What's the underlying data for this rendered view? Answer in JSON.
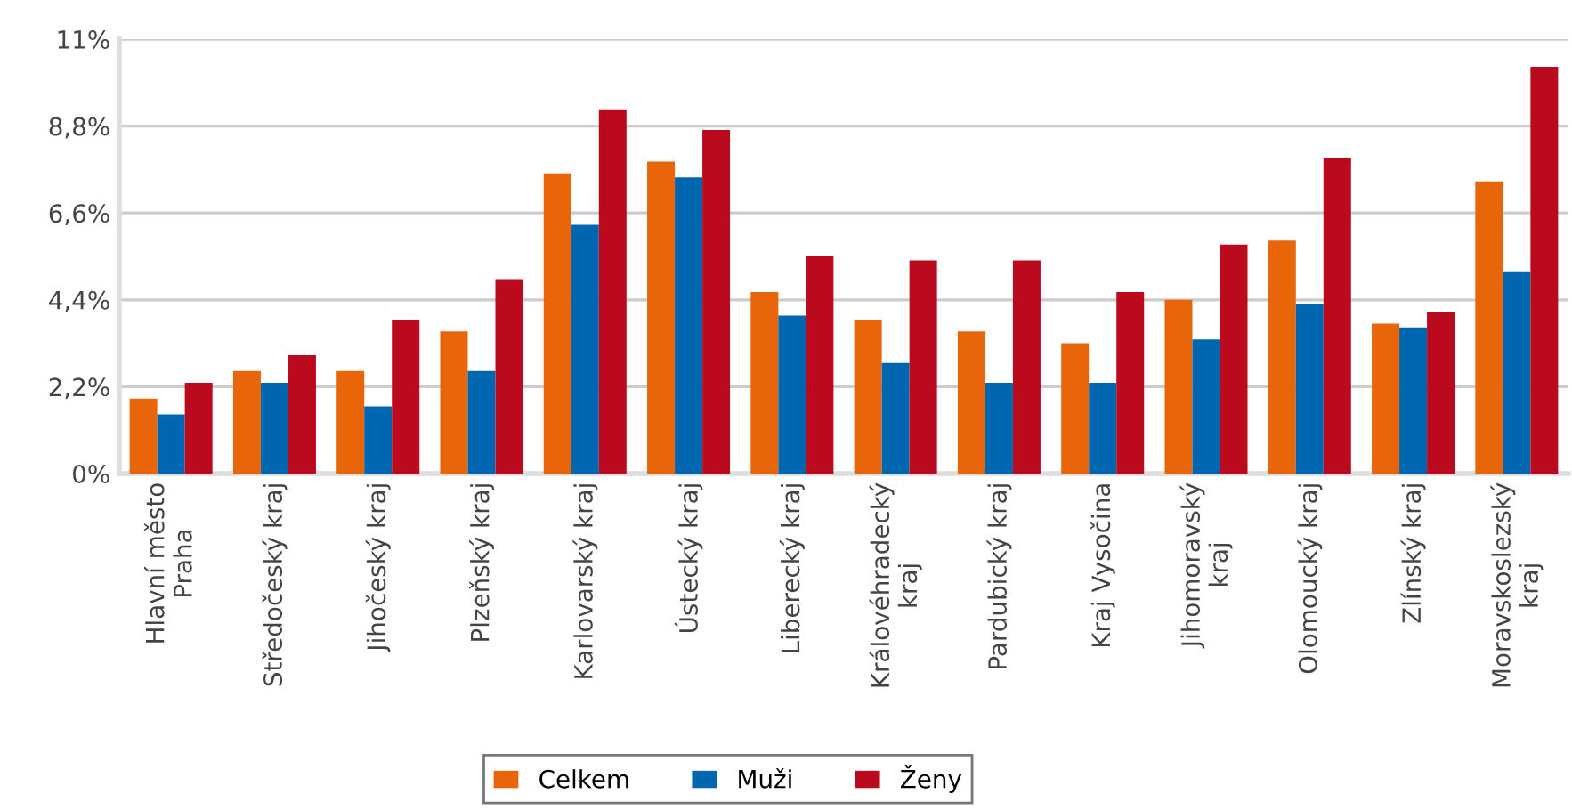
{
  "chart_data": {
    "type": "bar",
    "categories": [
      "Hlavní město\nPraha",
      "Středočeský kraj",
      "Jihočeský kraj",
      "Plzeňský kraj",
      "Karlovarský kraj",
      "Ústecký kraj",
      "Liberecký kraj",
      "Královéhradecký\nkraj",
      "Pardubický kraj",
      "Kraj Vysočina",
      "Jihomoravský\nkraj",
      "Olomoucký kraj",
      "Zlínský kraj",
      "Moravskoslezský\nkraj"
    ],
    "series": [
      {
        "name": "Celkem",
        "color": "#e8650a",
        "values": [
          1.9,
          2.6,
          2.6,
          3.6,
          7.6,
          7.9,
          4.6,
          3.9,
          3.6,
          3.3,
          4.4,
          5.9,
          3.8,
          7.4
        ]
      },
      {
        "name": "Muži",
        "color": "#0066b0",
        "values": [
          1.5,
          2.3,
          1.7,
          2.6,
          6.3,
          7.5,
          4.0,
          2.8,
          2.3,
          2.3,
          3.4,
          4.3,
          3.7,
          5.1
        ]
      },
      {
        "name": "Ženy",
        "color": "#bb0a1e",
        "values": [
          2.3,
          3.0,
          3.9,
          4.9,
          9.2,
          8.7,
          5.5,
          5.4,
          5.4,
          4.6,
          5.8,
          8.0,
          4.1,
          10.3
        ]
      }
    ],
    "ylim": [
      0,
      11
    ],
    "yticks": [
      {
        "value": 0,
        "label": "0%"
      },
      {
        "value": 2.2,
        "label": "2,2%"
      },
      {
        "value": 4.4,
        "label": "4,4%"
      },
      {
        "value": 6.6,
        "label": "6,6%"
      },
      {
        "value": 8.8,
        "label": "8,8%"
      },
      {
        "value": 11,
        "label": "11%"
      }
    ],
    "grid": "y",
    "legend": "bottom"
  }
}
